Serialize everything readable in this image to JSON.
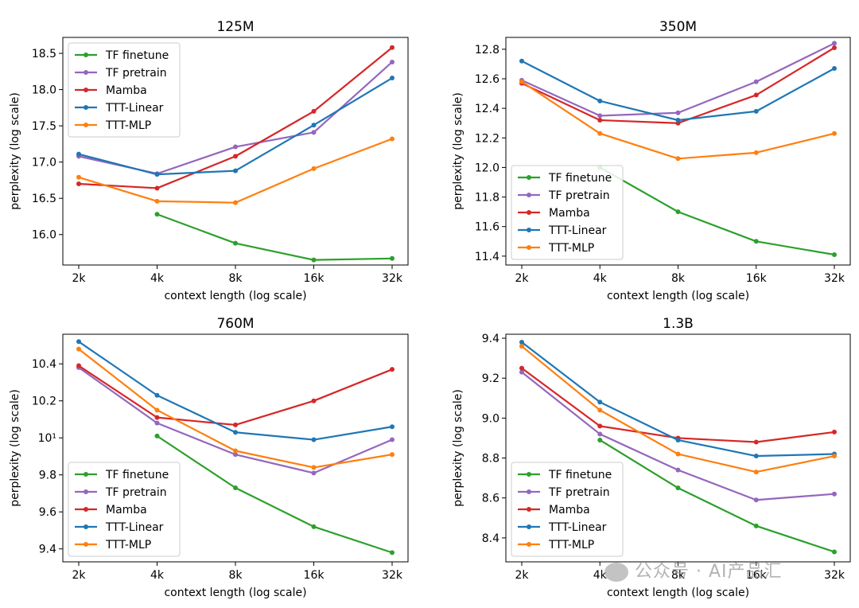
{
  "chart_data": [
    {
      "type": "line",
      "title": "125M",
      "xlabel": "context length (log scale)",
      "ylabel": "perplexity (log scale)",
      "categories": [
        "2k",
        "4k",
        "8k",
        "16k",
        "32k"
      ],
      "yticks": [
        16.0,
        16.5,
        17.0,
        17.5,
        18.0,
        18.5
      ],
      "ytick_labels": [
        "16.0",
        "16.5",
        "17.0",
        "17.5",
        "18.0",
        "18.5"
      ],
      "ylim": [
        15.58,
        18.72
      ],
      "legend_position": "top-left",
      "series": [
        {
          "name": "TF finetune",
          "color": "#2ca02c",
          "values": [
            null,
            16.28,
            15.88,
            15.65,
            15.67
          ]
        },
        {
          "name": "TF pretrain",
          "color": "#9467bd",
          "values": [
            17.08,
            16.84,
            17.21,
            17.41,
            18.38
          ]
        },
        {
          "name": "Mamba",
          "color": "#d62728",
          "values": [
            16.7,
            16.64,
            17.08,
            17.7,
            18.58
          ]
        },
        {
          "name": "TTT-Linear",
          "color": "#1f77b4",
          "values": [
            17.11,
            16.83,
            16.88,
            17.51,
            18.16
          ]
        },
        {
          "name": "TTT-MLP",
          "color": "#ff7f0e",
          "values": [
            16.79,
            16.46,
            16.44,
            16.91,
            17.32
          ]
        }
      ]
    },
    {
      "type": "line",
      "title": "350M",
      "xlabel": "context length (log scale)",
      "ylabel": "perplexity (log scale)",
      "categories": [
        "2k",
        "4k",
        "8k",
        "16k",
        "32k"
      ],
      "yticks": [
        11.4,
        11.6,
        11.8,
        12.0,
        12.2,
        12.4,
        12.6,
        12.8
      ],
      "ytick_labels": [
        "11.4",
        "11.6",
        "11.8",
        "12.0",
        "12.2",
        "12.4",
        "12.6",
        "12.8"
      ],
      "ylim": [
        11.34,
        12.88
      ],
      "legend_position": "bottom-left",
      "series": [
        {
          "name": "TF finetune",
          "color": "#2ca02c",
          "values": [
            null,
            12.0,
            11.7,
            11.5,
            11.41
          ]
        },
        {
          "name": "TF pretrain",
          "color": "#9467bd",
          "values": [
            12.59,
            12.35,
            12.37,
            12.58,
            12.84
          ]
        },
        {
          "name": "Mamba",
          "color": "#d62728",
          "values": [
            12.57,
            12.32,
            12.3,
            12.49,
            12.81
          ]
        },
        {
          "name": "TTT-Linear",
          "color": "#1f77b4",
          "values": [
            12.72,
            12.45,
            12.32,
            12.38,
            12.67
          ]
        },
        {
          "name": "TTT-MLP",
          "color": "#ff7f0e",
          "values": [
            12.58,
            12.23,
            12.06,
            12.1,
            12.23
          ]
        }
      ]
    },
    {
      "type": "line",
      "title": "760M",
      "xlabel": "context length (log scale)",
      "ylabel": "perplexity (log scale)",
      "categories": [
        "2k",
        "4k",
        "8k",
        "16k",
        "32k"
      ],
      "yticks": [
        9.4,
        9.6,
        9.8,
        10.0,
        10.2,
        10.4
      ],
      "ytick_labels": [
        "9.4",
        "9.6",
        "9.8",
        "10¹",
        "10.2",
        "10.4"
      ],
      "ylim": [
        9.33,
        10.56
      ],
      "legend_position": "bottom-left",
      "series": [
        {
          "name": "TF finetune",
          "color": "#2ca02c",
          "values": [
            null,
            10.01,
            9.73,
            9.52,
            9.38
          ]
        },
        {
          "name": "TF pretrain",
          "color": "#9467bd",
          "values": [
            10.38,
            10.08,
            9.91,
            9.81,
            9.99
          ]
        },
        {
          "name": "Mamba",
          "color": "#d62728",
          "values": [
            10.39,
            10.11,
            10.07,
            10.2,
            10.37
          ]
        },
        {
          "name": "TTT-Linear",
          "color": "#1f77b4",
          "values": [
            10.52,
            10.23,
            10.03,
            9.99,
            10.06
          ]
        },
        {
          "name": "TTT-MLP",
          "color": "#ff7f0e",
          "values": [
            10.48,
            10.15,
            9.93,
            9.84,
            9.91
          ]
        }
      ]
    },
    {
      "type": "line",
      "title": "1.3B",
      "xlabel": "context length (log scale)",
      "ylabel": "perplexity (log scale)",
      "categories": [
        "2k",
        "4k",
        "8k",
        "16k",
        "32k"
      ],
      "yticks": [
        8.4,
        8.6,
        8.8,
        9.0,
        9.2,
        9.4
      ],
      "ytick_labels": [
        "8.4",
        "8.6",
        "8.8",
        "9.0",
        "9.2",
        "9.4"
      ],
      "ylim": [
        8.28,
        9.42
      ],
      "legend_position": "bottom-left",
      "series": [
        {
          "name": "TF finetune",
          "color": "#2ca02c",
          "values": [
            null,
            8.89,
            8.65,
            8.46,
            8.33
          ]
        },
        {
          "name": "TF pretrain",
          "color": "#9467bd",
          "values": [
            9.23,
            8.92,
            8.74,
            8.59,
            8.62
          ]
        },
        {
          "name": "Mamba",
          "color": "#d62728",
          "values": [
            9.25,
            8.96,
            8.9,
            8.88,
            8.93
          ]
        },
        {
          "name": "TTT-Linear",
          "color": "#1f77b4",
          "values": [
            9.38,
            9.08,
            8.89,
            8.81,
            8.82
          ]
        },
        {
          "name": "TTT-MLP",
          "color": "#ff7f0e",
          "values": [
            9.36,
            9.04,
            8.82,
            8.73,
            8.81
          ]
        }
      ]
    }
  ],
  "watermark": "公众号 · AI产品汇"
}
